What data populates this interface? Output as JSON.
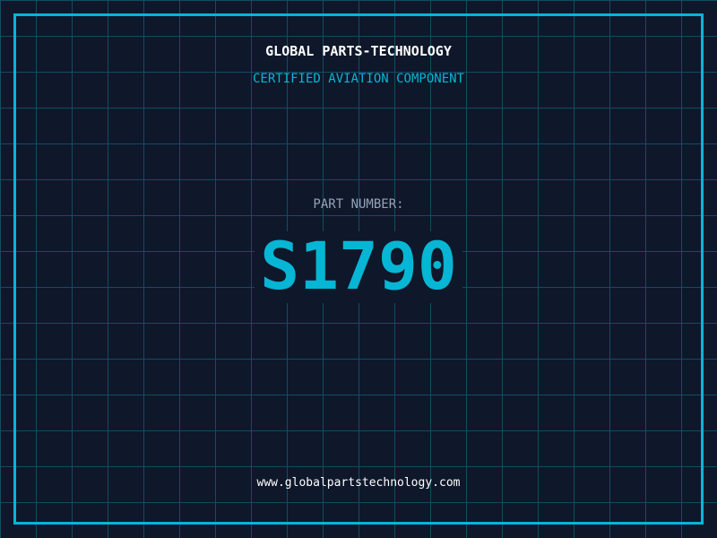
{
  "header": {
    "title": "GLOBAL PARTS-TECHNOLOGY",
    "subtitle": "CERTIFIED AVIATION COMPONENT"
  },
  "main": {
    "label": "PART NUMBER:",
    "part_number": "S1790"
  },
  "footer": {
    "url": "www.globalpartstechnology.com"
  },
  "colors": {
    "background": "#0f172a",
    "accent": "#06b6d4",
    "grid": "#155e75",
    "label": "#94a3b8"
  }
}
